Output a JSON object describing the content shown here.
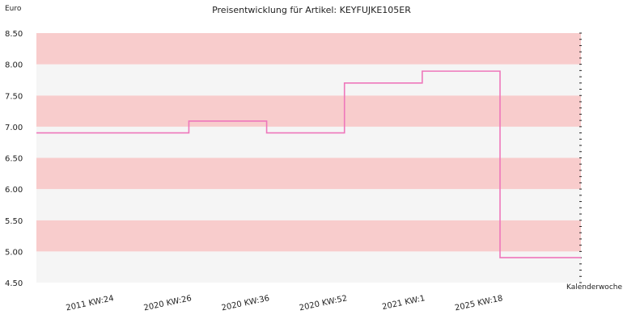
{
  "chart_data": {
    "type": "line",
    "step": true,
    "title": "Preisentwicklung für Artikel: KEYFUJKE105ER",
    "ylabel": "Euro",
    "xlabel": "Kalenderwoche",
    "ylim": [
      4.5,
      8.5
    ],
    "yticks": [
      "4.50",
      "5.00",
      "5.50",
      "6.00",
      "6.50",
      "7.00",
      "7.50",
      "8.00",
      "8.50"
    ],
    "categories": [
      "2011 KW:24",
      "2020 KW:26",
      "2020 KW:36",
      "2020 KW:52",
      "2021 KW:1",
      "2025 KW:18"
    ],
    "series": [
      {
        "values": [
          6.9,
          7.09,
          6.9,
          7.7,
          7.89,
          4.9
        ]
      }
    ],
    "grid": true,
    "colors": {
      "line": "#ee77bb",
      "band_a": "#f8cccc",
      "band_b": "#f5f5f5"
    }
  }
}
